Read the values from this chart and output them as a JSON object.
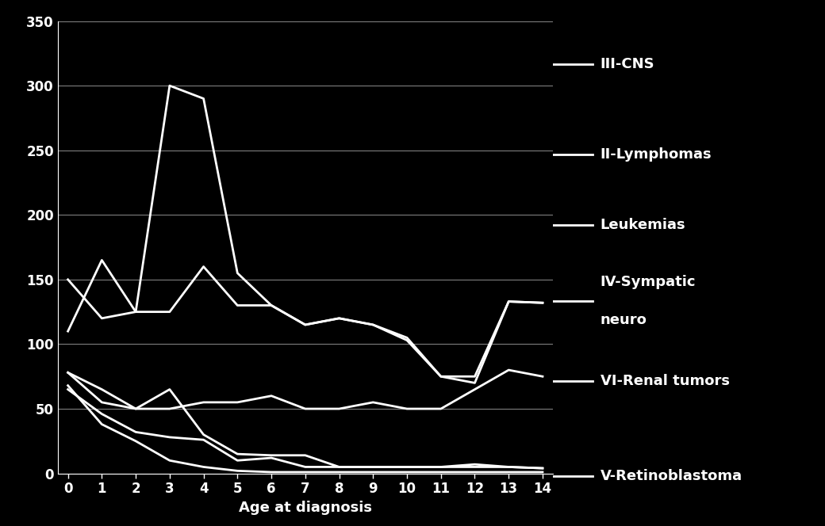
{
  "ages": [
    0,
    1,
    2,
    3,
    4,
    5,
    6,
    7,
    8,
    9,
    10,
    11,
    12,
    13,
    14
  ],
  "series": {
    "III-CNS": [
      150,
      120,
      125,
      300,
      290,
      155,
      130,
      115,
      120,
      115,
      103,
      75,
      70,
      133,
      132
    ],
    "Leukemias": [
      110,
      165,
      125,
      125,
      160,
      130,
      130,
      115,
      120,
      115,
      105,
      75,
      75,
      133,
      132
    ],
    "II-Lymphomas": [
      78,
      55,
      50,
      50,
      55,
      55,
      60,
      50,
      50,
      55,
      50,
      50,
      65,
      80,
      75
    ],
    "IV-Sympatic neuro": [
      78,
      65,
      50,
      65,
      30,
      15,
      14,
      14,
      5,
      5,
      5,
      5,
      7,
      5,
      4
    ],
    "VI-Renal tumors": [
      65,
      46,
      32,
      28,
      26,
      10,
      12,
      5,
      5,
      5,
      5,
      5,
      5,
      5,
      4
    ],
    "V-Retinoblastoma": [
      68,
      38,
      25,
      10,
      5,
      2,
      1,
      1,
      1,
      1,
      1,
      1,
      1,
      1,
      1
    ]
  },
  "line_color": "#ffffff",
  "bg_color": "#000000",
  "grid_color": "#ffffff",
  "text_color": "#ffffff",
  "ylim": [
    0,
    350
  ],
  "yticks": [
    0,
    50,
    100,
    150,
    200,
    250,
    300,
    350
  ],
  "xlabel": "Age at diagnosis",
  "legend_labels": [
    "III-CNS",
    "II-Lymphomas",
    "Leukemias",
    "IV-Sympatic\nneuro",
    "VI-Renal tumors",
    "V-Retinoblastoma"
  ],
  "axis_fontsize": 13,
  "tick_fontsize": 12,
  "legend_fontsize": 13
}
